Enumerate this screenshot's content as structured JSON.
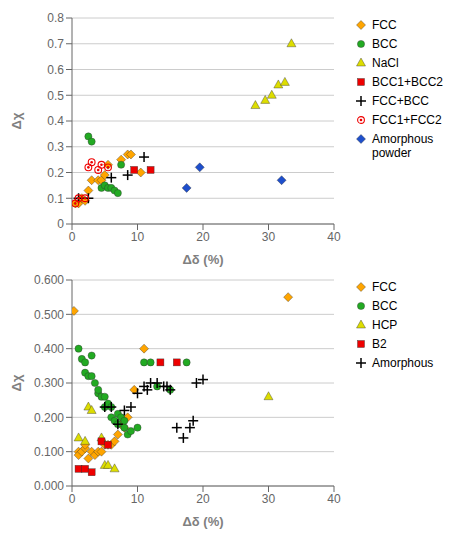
{
  "chart_data": [
    {
      "type": "scatter",
      "xlabel": "Δδ (%)",
      "ylabel": "Δχ",
      "xlim": [
        0,
        40
      ],
      "ylim": [
        0,
        0.8
      ],
      "xticks": [
        0,
        10,
        20,
        30,
        40
      ],
      "yticks": [
        0,
        0.1,
        0.2,
        0.3,
        0.4,
        0.5,
        0.6,
        0.7,
        0.8
      ],
      "grid": "y",
      "legend": "right",
      "series": [
        {
          "name": "FCC",
          "color": "#FFA500",
          "marker": "diamond",
          "x": [
            0.5,
            1.0,
            1.5,
            2.0,
            2.5,
            3.0,
            4.0,
            4.5,
            5.0,
            5.5,
            7.5,
            8.5,
            9.0,
            10.5
          ],
          "values": [
            0.08,
            0.08,
            0.1,
            0.09,
            0.13,
            0.17,
            0.17,
            0.17,
            0.19,
            0.23,
            0.25,
            0.27,
            0.27,
            0.2
          ]
        },
        {
          "name": "BCC",
          "color": "#22AA22",
          "marker": "circle",
          "x": [
            2.5,
            3.0,
            4.5,
            5.0,
            5.5,
            6.0,
            6.5,
            7.0,
            7.5
          ],
          "values": [
            0.34,
            0.32,
            0.14,
            0.15,
            0.14,
            0.14,
            0.13,
            0.12,
            0.23
          ]
        },
        {
          "name": "NaCl",
          "color": "#DDDD00",
          "marker": "triangle",
          "x": [
            28.0,
            29.5,
            30.5,
            31.5,
            32.5,
            33.5
          ],
          "values": [
            0.46,
            0.48,
            0.5,
            0.54,
            0.55,
            0.7
          ]
        },
        {
          "name": "BCC1+BCC2",
          "color": "#EE0000",
          "marker": "square",
          "x": [
            9.5,
            12.0
          ],
          "values": [
            0.21,
            0.21
          ]
        },
        {
          "name": "FCC+BCC",
          "color": "#000000",
          "marker": "plus",
          "x": [
            1.0,
            2.5,
            6.0,
            8.5,
            11.0
          ],
          "values": [
            0.1,
            0.1,
            0.18,
            0.19,
            0.26
          ]
        },
        {
          "name": "FCC1+FCC2",
          "color": "#EE0000",
          "marker": "bullseye",
          "x": [
            0.5,
            1.0,
            2.0,
            2.5,
            3.0,
            4.0,
            4.5,
            5.5
          ],
          "values": [
            0.08,
            0.1,
            0.1,
            0.22,
            0.24,
            0.21,
            0.23,
            0.22
          ]
        },
        {
          "name": "Amorphous\npowder",
          "color": "#1E4FCC",
          "marker": "diamond",
          "x": [
            17.5,
            19.5,
            32.0
          ],
          "values": [
            0.14,
            0.22,
            0.17
          ]
        }
      ]
    },
    {
      "type": "scatter",
      "xlabel": "Δδ (%)",
      "ylabel": "Δχ",
      "xlim": [
        0,
        40
      ],
      "ylim": [
        0,
        0.6
      ],
      "xticks": [
        0,
        10,
        20,
        30,
        40
      ],
      "yticks": [
        {
          "value": 0,
          "label": "0.000"
        },
        {
          "value": 0.1,
          "label": "0.100"
        },
        {
          "value": 0.2,
          "label": "0.200"
        },
        {
          "value": 0.3,
          "label": "0.300"
        },
        {
          "value": 0.4,
          "label": "0.400"
        },
        {
          "value": 0.5,
          "label": "0.500"
        },
        {
          "value": 0.6,
          "label": "0.600"
        }
      ],
      "grid": "y",
      "legend": "right",
      "series": [
        {
          "name": "FCC",
          "color": "#FFA500",
          "marker": "diamond",
          "x": [
            0.3,
            1.0,
            1.0,
            1.5,
            2.0,
            2.0,
            2.5,
            3.0,
            3.5,
            4.0,
            4.5,
            5.0,
            5.5,
            6.0,
            6.5,
            7.0,
            7.5,
            8.0,
            8.5,
            9.5,
            11.0,
            33.0
          ],
          "values": [
            0.51,
            0.1,
            0.09,
            0.1,
            0.11,
            0.12,
            0.08,
            0.1,
            0.09,
            0.1,
            0.1,
            0.12,
            0.12,
            0.12,
            0.13,
            0.15,
            0.18,
            0.17,
            0.2,
            0.28,
            0.4,
            0.55
          ]
        },
        {
          "name": "BCC",
          "color": "#22AA22",
          "marker": "circle",
          "x": [
            1.0,
            1.5,
            2.0,
            2.0,
            2.5,
            3.0,
            3.0,
            3.5,
            4.0,
            4.0,
            4.5,
            5.0,
            5.0,
            5.5,
            6.0,
            6.0,
            6.5,
            7.0,
            7.0,
            7.5,
            8.0,
            8.0,
            8.5,
            9.0,
            10.0,
            11.0,
            12.0,
            13.0,
            15.0,
            17.5
          ],
          "values": [
            0.4,
            0.37,
            0.36,
            0.33,
            0.32,
            0.38,
            0.32,
            0.3,
            0.27,
            0.28,
            0.26,
            0.23,
            0.26,
            0.24,
            0.2,
            0.23,
            0.19,
            0.21,
            0.18,
            0.2,
            0.17,
            0.19,
            0.15,
            0.16,
            0.17,
            0.36,
            0.36,
            0.29,
            0.28,
            0.36
          ]
        },
        {
          "name": "HCP",
          "color": "#DDDD00",
          "marker": "triangle",
          "x": [
            1.0,
            2.0,
            2.5,
            3.0,
            4.5,
            5.0,
            5.5,
            6.5,
            30.0
          ],
          "values": [
            0.14,
            0.13,
            0.23,
            0.22,
            0.14,
            0.06,
            0.06,
            0.05,
            0.26
          ]
        },
        {
          "name": "B2",
          "color": "#EE0000",
          "marker": "square",
          "x": [
            1.0,
            2.0,
            3.0,
            4.5,
            5.5,
            13.5,
            16.0
          ],
          "values": [
            0.05,
            0.05,
            0.04,
            0.13,
            0.12,
            0.36,
            0.36
          ]
        },
        {
          "name": "Amorphous",
          "color": "#000000",
          "marker": "plus",
          "x": [
            5.0,
            6.0,
            7.0,
            8.0,
            9.0,
            10.0,
            11.0,
            11.5,
            12.0,
            13.0,
            14.0,
            14.5,
            15.0,
            16.0,
            17.0,
            18.0,
            18.5,
            19.0,
            20.0
          ],
          "values": [
            0.23,
            0.23,
            0.18,
            0.22,
            0.23,
            0.27,
            0.29,
            0.28,
            0.3,
            0.3,
            0.29,
            0.29,
            0.28,
            0.17,
            0.14,
            0.17,
            0.19,
            0.3,
            0.31
          ]
        }
      ]
    }
  ]
}
